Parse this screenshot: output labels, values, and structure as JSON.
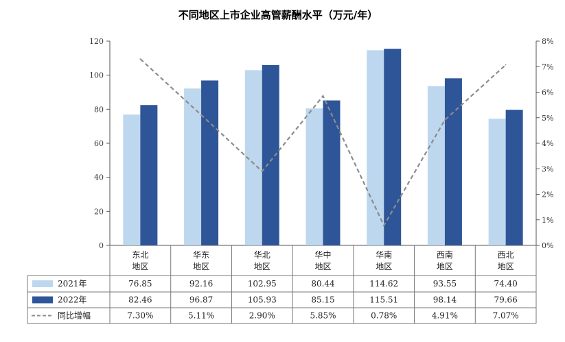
{
  "chart_data": {
    "type": "bar",
    "title": "不同地区上市企业高管薪酬水平（万元/年）",
    "categories": [
      "东北\n地区",
      "华东\n地区",
      "华北\n地区",
      "华中\n地区",
      "华南\n地区",
      "西南\n地区",
      "西北\n地区"
    ],
    "series": [
      {
        "name": "2021年",
        "type": "bar",
        "axis": "left",
        "color": "#bdd7ee",
        "values": [
          76.85,
          92.16,
          102.95,
          80.44,
          114.62,
          93.55,
          74.4
        ],
        "labels": [
          "76.85",
          "92.16",
          "102.95",
          "80.44",
          "114.62",
          "93.55",
          "74.40"
        ]
      },
      {
        "name": "2022年",
        "type": "bar",
        "axis": "left",
        "color": "#2e5597",
        "values": [
          82.46,
          96.87,
          105.93,
          85.15,
          115.51,
          98.14,
          79.66
        ],
        "labels": [
          "82.46",
          "96.87",
          "105.93",
          "85.15",
          "115.51",
          "98.14",
          "79.66"
        ]
      },
      {
        "name": "同比增幅",
        "type": "line",
        "style": "dashed",
        "axis": "right",
        "color": "#8c8c8c",
        "values": [
          7.3,
          5.11,
          2.9,
          5.85,
          0.78,
          4.91,
          7.07
        ],
        "labels": [
          "7.30%",
          "5.11%",
          "2.90%",
          "5.85%",
          "0.78%",
          "4.91%",
          "7.07%"
        ]
      }
    ],
    "ylim": [
      0,
      120
    ],
    "y_ticks": [
      "0",
      "20",
      "40",
      "60",
      "80",
      "100",
      "120"
    ],
    "y2lim": [
      0,
      8
    ],
    "y2_ticks": [
      "0%",
      "1%",
      "2%",
      "3%",
      "4%",
      "5%",
      "6%",
      "7%",
      "8%"
    ],
    "legend": "data-table",
    "grid": false
  }
}
